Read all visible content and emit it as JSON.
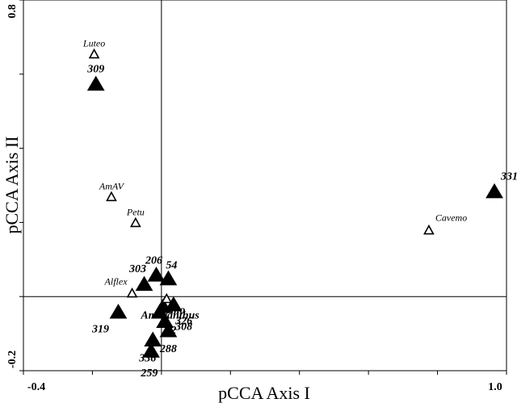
{
  "chart_data": {
    "type": "scatter",
    "title": "",
    "xlabel": "pCCA Axis I",
    "ylabel": "pCCA Axis II",
    "xlim": [
      -0.4,
      1.0
    ],
    "ylim": [
      -0.2,
      0.8
    ],
    "x_tick_labels": [
      {
        "value": -0.4,
        "text": "-0.4"
      },
      {
        "value": 1.0,
        "text": "1.0"
      }
    ],
    "y_tick_labels": [
      {
        "value": 0.8,
        "text": "0.8"
      },
      {
        "value": -0.2,
        "text": "-0.2"
      }
    ],
    "x_ticks": [
      -0.4,
      -0.2,
      0.0,
      0.2,
      0.4,
      0.6,
      0.8,
      1.0
    ],
    "y_ticks": [
      -0.2,
      0.0,
      0.2,
      0.4,
      0.6,
      0.8
    ],
    "reference_lines": {
      "x": 0.0,
      "y": 0.0
    },
    "grid": false,
    "series": [
      {
        "marker": "filled-triangle",
        "points": [
          {
            "label": "309",
            "x": -0.19,
            "y": 0.575
          },
          {
            "label": "331",
            "x": 0.965,
            "y": 0.285
          },
          {
            "label": "303",
            "x": -0.05,
            "y": 0.035
          },
          {
            "label": "206",
            "x": -0.015,
            "y": 0.06
          },
          {
            "label": "54",
            "x": 0.02,
            "y": 0.05
          },
          {
            "label": "319",
            "x": -0.125,
            "y": -0.04
          },
          {
            "label": "",
            "x": 0.005,
            "y": -0.025
          },
          {
            "label": "",
            "x": 0.035,
            "y": -0.02
          },
          {
            "label": "",
            "x": -0.005,
            "y": -0.04
          },
          {
            "label": "",
            "x": 0.01,
            "y": -0.065
          },
          {
            "label": "",
            "x": 0.02,
            "y": -0.09
          },
          {
            "label": "",
            "x": -0.025,
            "y": -0.115
          },
          {
            "label": "",
            "x": -0.03,
            "y": -0.145
          }
        ]
      },
      {
        "marker": "open-triangle",
        "points": [
          {
            "label": "Luteo",
            "x": -0.195,
            "y": 0.655
          },
          {
            "label": "AmAV",
            "x": -0.145,
            "y": 0.27
          },
          {
            "label": "Petu",
            "x": -0.075,
            "y": 0.2
          },
          {
            "label": "Alflex",
            "x": -0.085,
            "y": 0.01
          },
          {
            "label": "Cavemo",
            "x": 0.775,
            "y": 0.18
          },
          {
            "label": "",
            "x": 0.015,
            "y": -0.005
          }
        ]
      }
    ],
    "overlapping_labels": [
      {
        "text": "omo",
        "x": 0.04,
        "y": -0.045
      },
      {
        "text": "Amaranthus",
        "x": 0.025,
        "y": -0.06
      },
      {
        "text": "326",
        "x": 0.065,
        "y": -0.075
      },
      {
        "text": "308",
        "x": 0.065,
        "y": -0.09
      },
      {
        "text": "5",
        "x": 0.0,
        "y": -0.085
      },
      {
        "text": "2",
        "x": 0.035,
        "y": -0.1
      },
      {
        "text": "288",
        "x": 0.02,
        "y": -0.15
      },
      {
        "text": "336",
        "x": -0.04,
        "y": -0.175
      },
      {
        "text": "259",
        "x": -0.035,
        "y": -0.215
      }
    ]
  }
}
